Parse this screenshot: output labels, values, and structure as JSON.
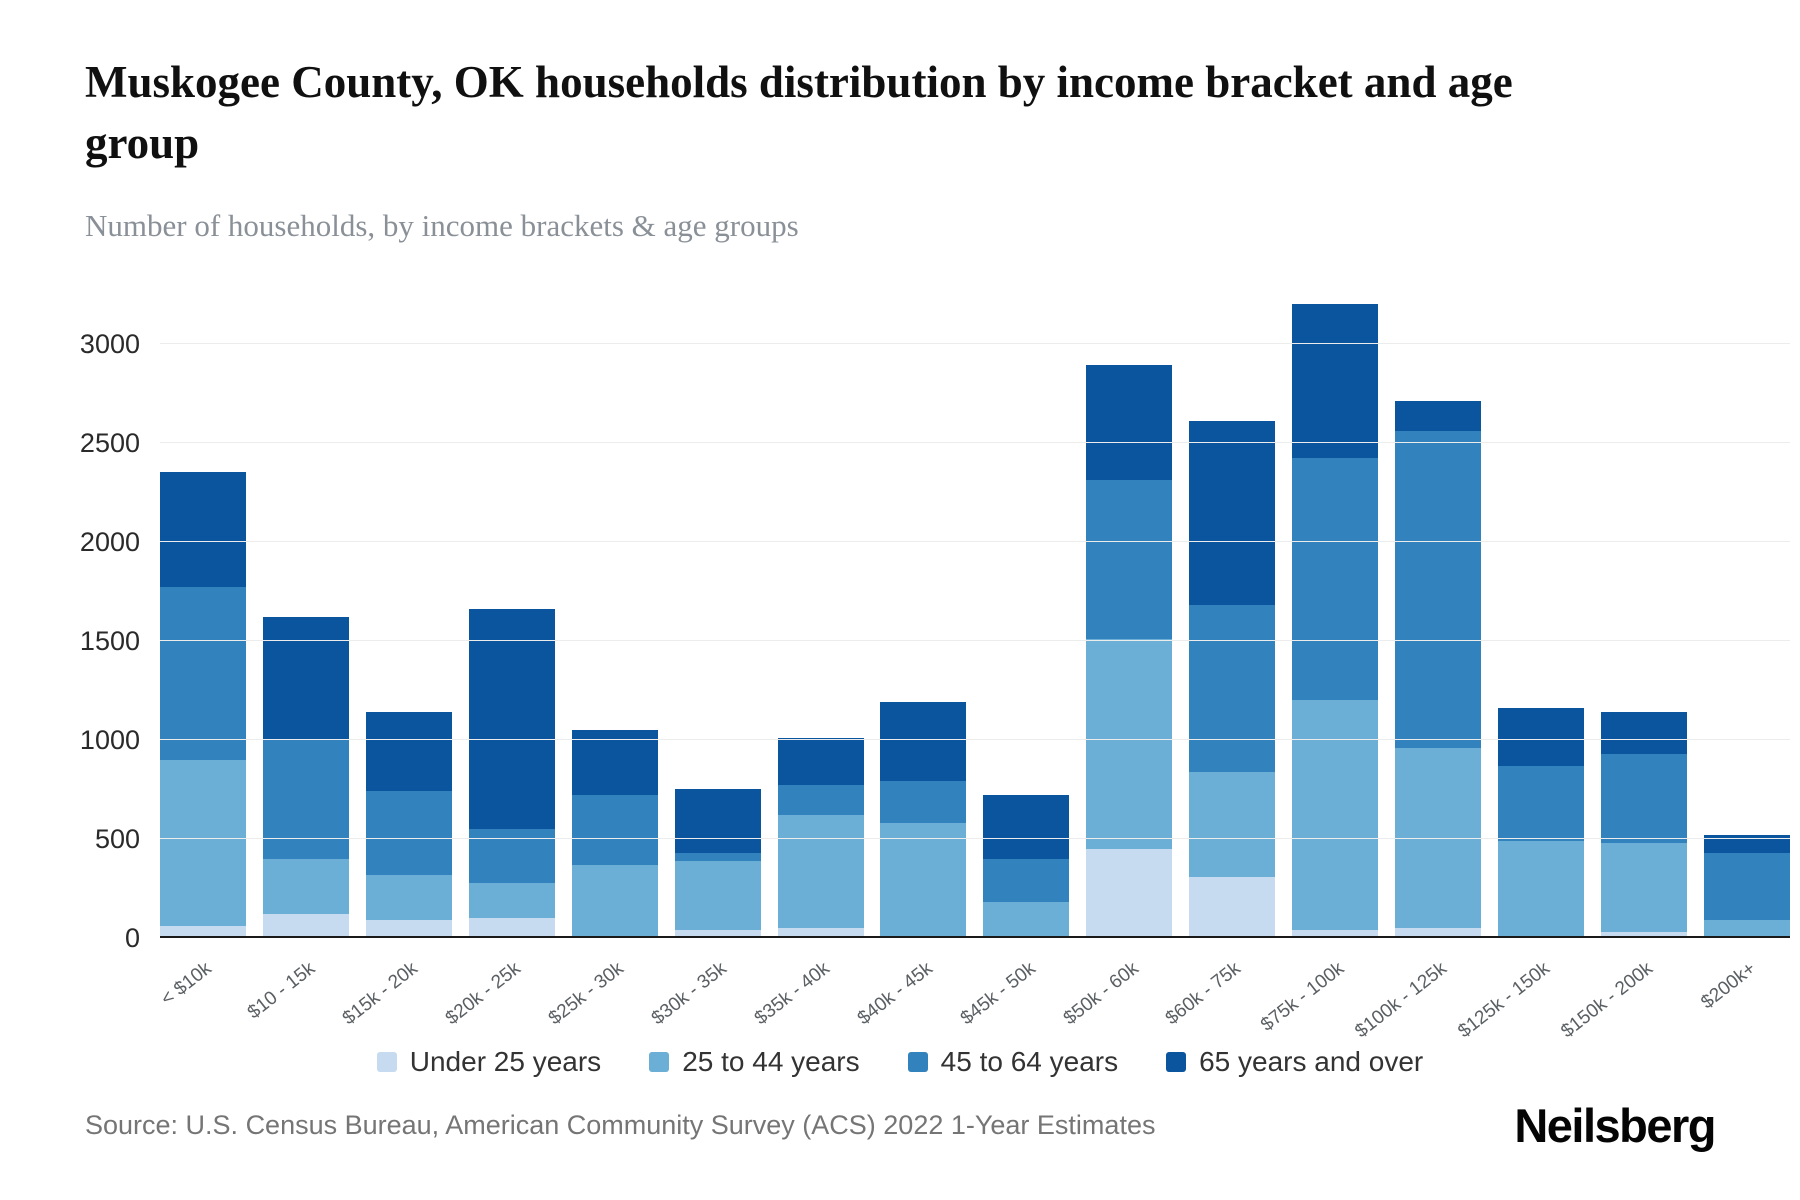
{
  "page": {
    "title": "Muskogee County, OK households distribution by income bracket and age group",
    "subtitle": "Number of households, by income brackets & age groups",
    "source": "Source: U.S. Census Bureau, American Community Survey (ACS) 2022 1-Year Estimates",
    "brand": "Neilsberg"
  },
  "chart_data": {
    "type": "bar",
    "stacked": true,
    "title": "Muskogee County, OK households distribution by income bracket and age group",
    "subtitle": "Number of households, by income brackets & age groups",
    "xlabel": "",
    "ylabel": "Number of households",
    "grid": "horizontal",
    "legend_position": "bottom",
    "yticks": [
      0,
      500,
      1000,
      1500,
      2000,
      2500,
      3000
    ],
    "ylim": [
      0,
      3280
    ],
    "categories": [
      "< $10k",
      "$10 - 15k",
      "$15k - 20k",
      "$20k - 25k",
      "$25k - 30k",
      "$30k - 35k",
      "$35k - 40k",
      "$40k - 45k",
      "$45k - 50k",
      "$50k - 60k",
      "$60k - 75k",
      "$75k - 100k",
      "$100k - 125k",
      "$125k - 150k",
      "$150k - 200k",
      "$200k+"
    ],
    "series": [
      {
        "name": "Under 25 years",
        "color": "#c6dbef",
        "values": [
          60,
          120,
          90,
          100,
          10,
          40,
          50,
          10,
          10,
          450,
          310,
          40,
          50,
          10,
          30,
          10
        ]
      },
      {
        "name": "25 to 44 years",
        "color": "#6baed6",
        "values": [
          840,
          280,
          230,
          180,
          360,
          350,
          570,
          570,
          170,
          1060,
          530,
          1160,
          910,
          480,
          450,
          80
        ]
      },
      {
        "name": "45 to 64 years",
        "color": "#3182bd",
        "values": [
          870,
          600,
          420,
          270,
          350,
          40,
          150,
          210,
          220,
          800,
          840,
          1220,
          1600,
          380,
          450,
          340
        ]
      },
      {
        "name": "65 years and over",
        "color": "#0b559e",
        "values": [
          580,
          620,
          400,
          1110,
          330,
          320,
          240,
          400,
          320,
          580,
          930,
          780,
          150,
          290,
          210,
          90
        ]
      }
    ],
    "totals": [
      2350,
      1620,
      1140,
      1660,
      1050,
      750,
      1010,
      1190,
      720,
      2890,
      2610,
      3200,
      2710,
      1160,
      1140,
      520
    ]
  }
}
